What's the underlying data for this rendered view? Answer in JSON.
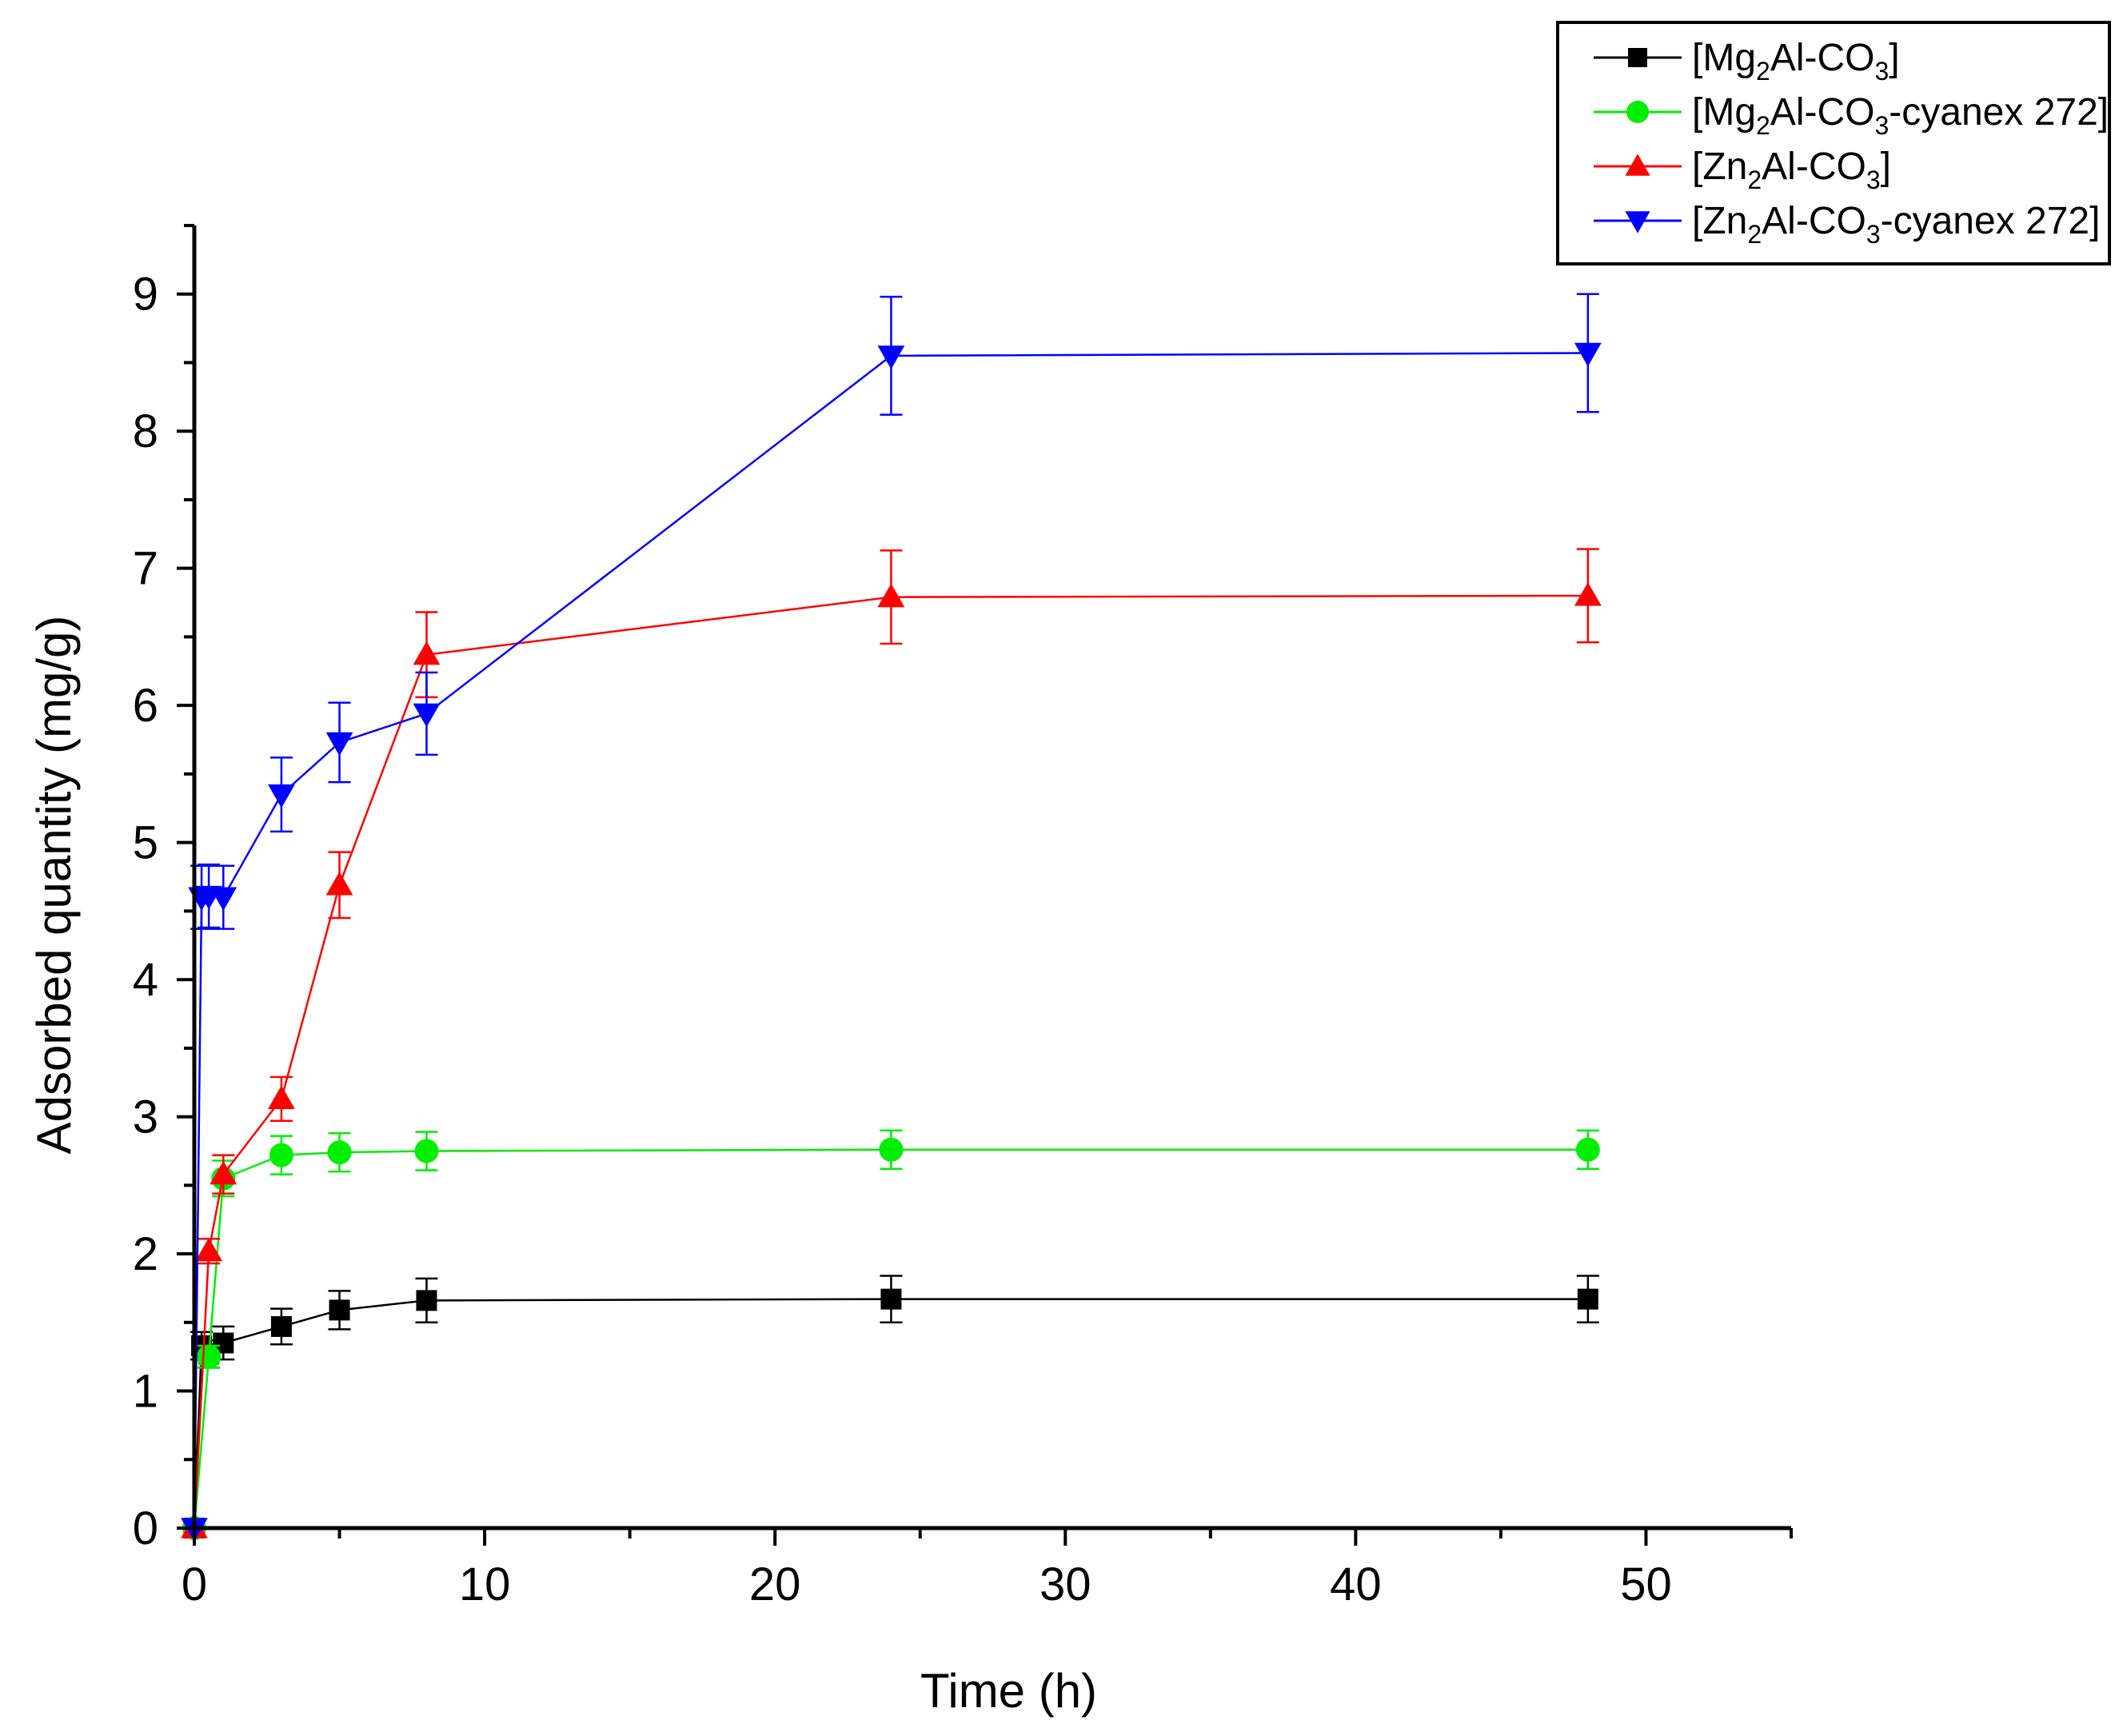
{
  "chart_data": {
    "type": "line",
    "title": "",
    "xlabel": "Time (h)",
    "ylabel": "Adsorbed quantity (mg/g)",
    "xlim": [
      0,
      55
    ],
    "ylim": [
      0,
      9.5
    ],
    "xticks": [
      0,
      10,
      20,
      30,
      40,
      50
    ],
    "xticks_minor": [
      5,
      15,
      25,
      35,
      45,
      55
    ],
    "yticks": [
      0,
      1,
      2,
      3,
      4,
      5,
      6,
      7,
      8,
      9
    ],
    "yticks_minor": [
      0.5,
      1.5,
      2.5,
      3.5,
      4.5,
      5.5,
      6.5,
      7.5,
      8.5,
      9.5
    ],
    "grid": false,
    "legend_position": "top-right",
    "series": [
      {
        "name": "[Mg2Al-CO3]",
        "label_parts": [
          "[Mg",
          "2",
          "Al-CO",
          "3",
          "]"
        ],
        "color": "#000000",
        "marker": "square",
        "x": [
          0,
          0.25,
          0.5,
          1,
          3,
          5,
          8,
          24,
          48
        ],
        "y": [
          0,
          1.33,
          1.27,
          1.35,
          1.47,
          1.59,
          1.66,
          1.67,
          1.67
        ],
        "err": [
          0,
          0.1,
          0.1,
          0.12,
          0.13,
          0.14,
          0.16,
          0.17,
          0.17
        ]
      },
      {
        "name": "[Mg2Al-CO3-cyanex 272]",
        "label_parts": [
          "[Mg",
          "2",
          "Al-CO",
          "3",
          "-cyanex 272]"
        ],
        "color": "#00ee00",
        "marker": "circle",
        "x": [
          0,
          0.5,
          1,
          3,
          5,
          8,
          24,
          48
        ],
        "y": [
          0,
          1.25,
          2.55,
          2.72,
          2.74,
          2.75,
          2.76,
          2.76
        ],
        "err": [
          0,
          0.08,
          0.13,
          0.14,
          0.14,
          0.14,
          0.14,
          0.14
        ]
      },
      {
        "name": "[Zn2Al-CO3]",
        "label_parts": [
          "[Zn",
          "2",
          "Al-CO",
          "3",
          "]"
        ],
        "color": "#ff0000",
        "marker": "triangle-up",
        "x": [
          0,
          0.5,
          1,
          3,
          5,
          8,
          24,
          48
        ],
        "y": [
          0,
          2.02,
          2.58,
          3.13,
          4.69,
          6.37,
          6.79,
          6.8
        ],
        "err": [
          0,
          0.09,
          0.14,
          0.16,
          0.24,
          0.31,
          0.34,
          0.34
        ]
      },
      {
        "name": "[Zn2Al-CO3-cyanex 272]",
        "label_parts": [
          "[Zn",
          "2",
          "Al-CO",
          "3",
          "-cyanex 272]"
        ],
        "color": "#0000ff",
        "marker": "triangle-down",
        "x": [
          0,
          0.25,
          0.5,
          1,
          3,
          5,
          8,
          24,
          48
        ],
        "y": [
          0,
          4.6,
          4.61,
          4.6,
          5.35,
          5.73,
          5.94,
          8.55,
          8.57
        ],
        "err": [
          0,
          0.23,
          0.23,
          0.23,
          0.27,
          0.29,
          0.3,
          0.43,
          0.43
        ]
      }
    ]
  }
}
